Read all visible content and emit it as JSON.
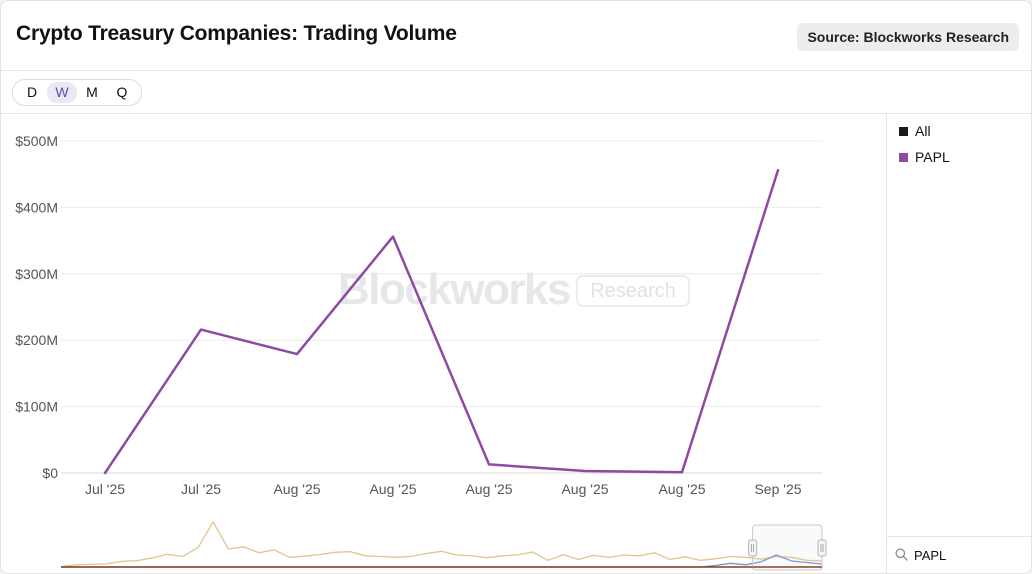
{
  "header": {
    "title": "Crypto Treasury Companies: Trading Volume",
    "source": "Source: Blockworks Research"
  },
  "range_selector": {
    "options": [
      "D",
      "W",
      "M",
      "Q"
    ],
    "active": "W"
  },
  "watermark": {
    "brand": "Blockworks",
    "badge": "Research"
  },
  "legend": [
    {
      "label": "All",
      "color": "#1a1a1a"
    },
    {
      "label": "PAPL",
      "color": "#8e4aa3"
    }
  ],
  "search": {
    "value": "PAPL"
  },
  "chart_data": {
    "type": "line",
    "x": [
      "Jul '25",
      "Jul '25",
      "Aug '25",
      "Aug '25",
      "Aug '25",
      "Aug '25",
      "Aug '25",
      "Sep '25"
    ],
    "series": [
      {
        "name": "PAPL",
        "color": "#8e4aa3",
        "values": [
          0,
          216,
          179,
          356,
          13,
          3,
          1,
          456
        ]
      }
    ],
    "y_ticks": [
      "$0",
      "$100M",
      "$200M",
      "$300M",
      "$400M",
      "$500M"
    ],
    "y_unit": "$M",
    "ylim": [
      0,
      500
    ],
    "grid": true,
    "legend_position": "right",
    "navigator": {
      "series": [
        {
          "color": "#e3c58a",
          "values": [
            0.2,
            1.5,
            1.8,
            2.1,
            3.8,
            4.2,
            6.1,
            8.5,
            7.0,
            13.0,
            30.0,
            12.0,
            13.5,
            9.5,
            11.5,
            6.5,
            7.2,
            8.3,
            9.8,
            10.2,
            7.5,
            7.0,
            6.5,
            7.1,
            9.0,
            10.5,
            8.0,
            7.4,
            6.2,
            7.5,
            8.1,
            10.0,
            4.5,
            8.2,
            5.0,
            7.8,
            6.4,
            8.0,
            7.5,
            9.5,
            5.0,
            6.8,
            4.5,
            5.5,
            7.0,
            6.5,
            5.2,
            7.0,
            6.5,
            4.5,
            4.0
          ]
        },
        {
          "color": "#7b8fd0",
          "values": [
            0,
            0,
            0,
            0,
            0,
            0,
            0,
            0,
            0,
            0,
            0,
            0,
            0,
            0,
            0,
            0,
            0,
            0,
            0,
            0,
            0,
            0,
            0,
            0,
            0,
            0,
            0,
            0,
            0,
            0,
            0,
            0,
            0,
            0,
            0,
            0,
            0,
            0,
            0,
            0,
            0,
            0,
            0,
            1.0,
            2.5,
            1.5,
            3.5,
            8.0,
            4.0,
            3.0,
            2.0
          ]
        },
        {
          "color": "#8a3a1a",
          "values": [
            0,
            0,
            0,
            0,
            0,
            0,
            0,
            0,
            0,
            0,
            0,
            0,
            0,
            0,
            0,
            0,
            0,
            0,
            0,
            0,
            0,
            0,
            0,
            0,
            0,
            0,
            0,
            0,
            0,
            0,
            0,
            0,
            0,
            0,
            0,
            0,
            0,
            0,
            0,
            0,
            0,
            0,
            0,
            0,
            0,
            0,
            0,
            0,
            0,
            0,
            0
          ]
        }
      ],
      "selection": [
        0.83,
        1.0
      ]
    }
  }
}
